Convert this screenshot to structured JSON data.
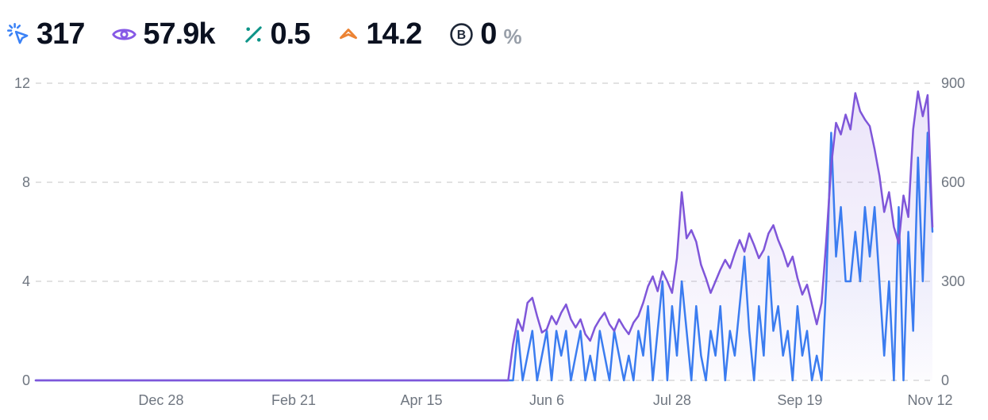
{
  "stats": {
    "clicks": {
      "value": "317",
      "icon": "cursor-click-icon",
      "color": "#3b82f6"
    },
    "impressions": {
      "value": "57.9k",
      "icon": "eye-icon",
      "color": "#8659e6"
    },
    "ctr": {
      "value": "0.5",
      "icon": "percent-icon",
      "color": "#0d9488"
    },
    "position": {
      "value": "14.2",
      "icon": "position-arrow-icon",
      "color": "#ec8333"
    },
    "branded": {
      "value": "0",
      "suffix": "%",
      "icon": "circled-b-icon",
      "color": "#1f2838"
    }
  },
  "chart_data": {
    "type": "line",
    "title": "",
    "xlabel": "",
    "ylabel_left": "",
    "ylabel_right": "",
    "grid": "dashed-horizontal",
    "legend": "none",
    "x_unit": "days-from-start",
    "x_max_day": 372,
    "day_step": 2,
    "x_tick_labels": [
      {
        "label": "Dec 28",
        "day": 52
      },
      {
        "label": "Feb 21",
        "day": 107
      },
      {
        "label": "Apr 15",
        "day": 160
      },
      {
        "label": "Jun 6",
        "day": 212
      },
      {
        "label": "Jul 28",
        "day": 264
      },
      {
        "label": "Sep 19",
        "day": 317
      },
      {
        "label": "Nov 12",
        "day": 371
      }
    ],
    "left_axis": {
      "ticks": [
        0,
        4,
        8,
        12
      ],
      "range": [
        0,
        12
      ]
    },
    "right_axis": {
      "ticks": [
        0,
        300,
        600,
        900
      ],
      "range": [
        0,
        900
      ]
    },
    "gridline_color": "#d9d9d9",
    "series": [
      {
        "name": "impressions",
        "axis": "right",
        "color": "#7f56d9",
        "fill_top_opacity": 0.16,
        "fill_bottom_opacity": 0.02,
        "values": [
          0,
          0,
          0,
          0,
          0,
          0,
          0,
          0,
          0,
          0,
          0,
          0,
          0,
          0,
          0,
          0,
          0,
          0,
          0,
          0,
          0,
          0,
          0,
          0,
          0,
          0,
          0,
          0,
          0,
          0,
          0,
          0,
          0,
          0,
          0,
          0,
          0,
          0,
          0,
          0,
          0,
          0,
          0,
          0,
          0,
          0,
          0,
          0,
          0,
          0,
          0,
          0,
          0,
          0,
          0,
          0,
          0,
          0,
          0,
          0,
          0,
          0,
          0,
          0,
          0,
          0,
          0,
          0,
          0,
          0,
          0,
          0,
          0,
          0,
          0,
          0,
          0,
          0,
          0,
          0,
          0,
          0,
          0,
          0,
          0,
          0,
          0,
          0,
          0,
          0,
          0,
          0,
          0,
          0,
          0,
          0,
          0,
          0,
          0,
          110,
          185,
          150,
          235,
          250,
          195,
          145,
          155,
          195,
          170,
          205,
          230,
          185,
          160,
          185,
          140,
          120,
          160,
          185,
          205,
          170,
          150,
          185,
          160,
          140,
          175,
          195,
          235,
          285,
          315,
          270,
          330,
          300,
          265,
          370,
          570,
          430,
          455,
          420,
          350,
          310,
          265,
          300,
          335,
          365,
          340,
          385,
          425,
          390,
          445,
          410,
          370,
          395,
          445,
          470,
          425,
          390,
          345,
          375,
          310,
          260,
          290,
          230,
          170,
          235,
          425,
          650,
          780,
          745,
          805,
          760,
          870,
          815,
          790,
          770,
          700,
          620,
          510,
          570,
          465,
          415,
          560,
          495,
          760,
          875,
          800,
          864,
          465
        ]
      },
      {
        "name": "clicks",
        "axis": "left",
        "color": "#3b7cf0",
        "fill_top_opacity": 0.1,
        "fill_bottom_opacity": 0.0,
        "values": [
          0,
          0,
          0,
          0,
          0,
          0,
          0,
          0,
          0,
          0,
          0,
          0,
          0,
          0,
          0,
          0,
          0,
          0,
          0,
          0,
          0,
          0,
          0,
          0,
          0,
          0,
          0,
          0,
          0,
          0,
          0,
          0,
          0,
          0,
          0,
          0,
          0,
          0,
          0,
          0,
          0,
          0,
          0,
          0,
          0,
          0,
          0,
          0,
          0,
          0,
          0,
          0,
          0,
          0,
          0,
          0,
          0,
          0,
          0,
          0,
          0,
          0,
          0,
          0,
          0,
          0,
          0,
          0,
          0,
          0,
          0,
          0,
          0,
          0,
          0,
          0,
          0,
          0,
          0,
          0,
          0,
          0,
          0,
          0,
          0,
          0,
          0,
          0,
          0,
          0,
          0,
          0,
          0,
          0,
          0,
          0,
          0,
          0,
          0,
          0,
          2,
          0,
          1,
          2,
          0,
          1,
          2,
          0,
          2,
          1,
          2,
          0,
          1,
          2,
          0,
          1,
          0,
          2,
          1,
          0,
          2,
          1,
          0,
          1,
          0,
          2,
          1,
          3,
          0,
          2,
          4,
          0,
          3,
          1,
          4,
          2,
          0,
          3,
          1,
          0,
          2,
          1,
          3,
          0,
          2,
          1,
          3,
          5,
          2,
          0,
          3,
          1,
          5,
          2,
          3,
          1,
          2,
          0,
          3,
          1,
          2,
          0,
          1,
          0,
          4,
          10,
          5,
          7,
          4,
          4,
          6,
          4,
          7,
          5,
          7,
          4,
          1,
          4,
          0,
          7,
          0,
          6,
          2,
          9,
          4,
          10,
          6
        ]
      }
    ]
  }
}
